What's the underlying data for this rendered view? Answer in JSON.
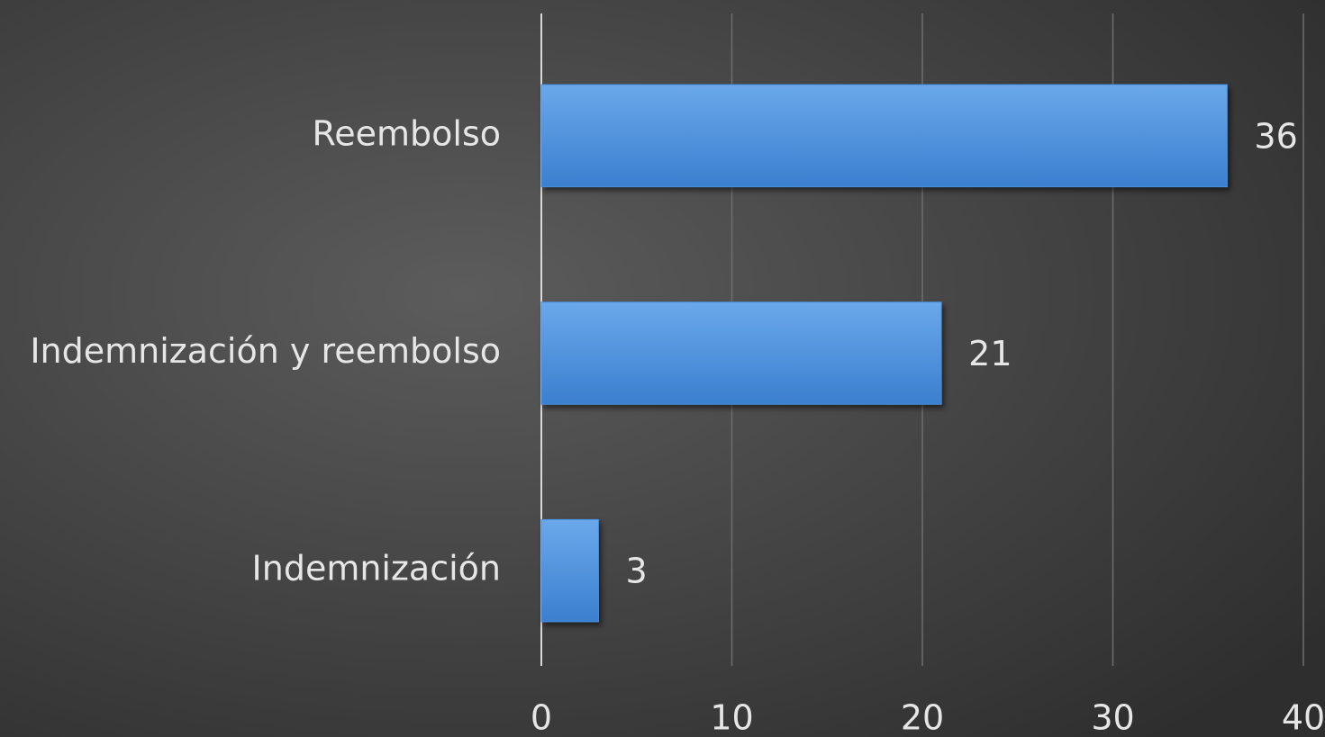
{
  "chart_data": {
    "type": "bar",
    "orientation": "horizontal",
    "categories": [
      "Reembolso",
      "Indemnización y reembolso",
      "Indemnización"
    ],
    "values": [
      36,
      21,
      3
    ],
    "color": "#4a8fdc",
    "xlim": [
      0,
      40
    ],
    "xticks": [
      0,
      10,
      20,
      30,
      40
    ],
    "grid": true
  }
}
